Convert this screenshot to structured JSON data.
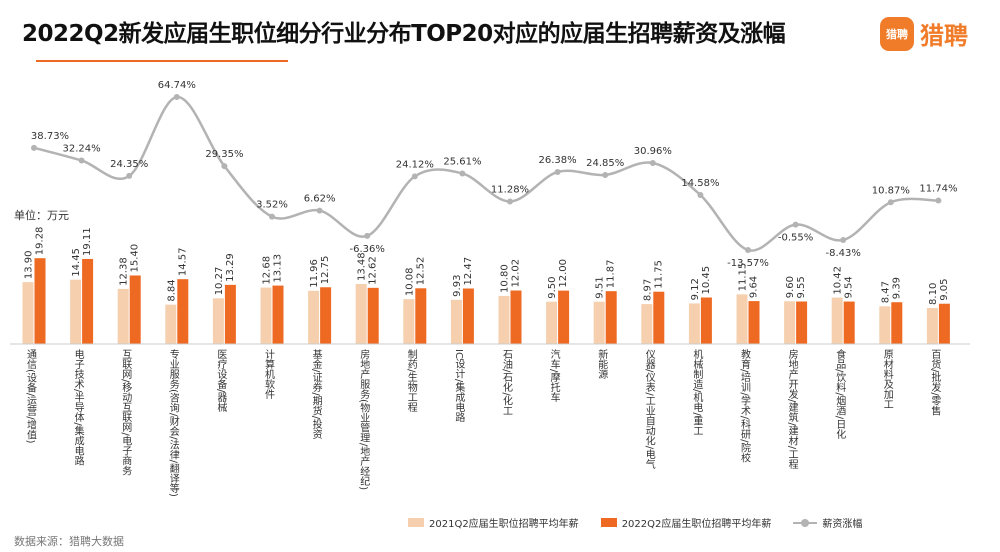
{
  "header": {
    "title": "2022Q2新发应届生职位细分行业分布TOP20对应的应届生招聘薪资及涨幅",
    "brand_logo_text": "猎聘",
    "brand_name": "猎聘"
  },
  "unit_label": "单位：万元",
  "source_label": "数据来源：猎聘大数据",
  "colors": {
    "bar_2021": "#F5CFAE",
    "bar_2022": "#EE6A22",
    "line": "#B3B3B3",
    "brand": "#F07C2A",
    "rule": "#EE6A22"
  },
  "legend": {
    "series_2021": "2021Q2应届生职位招聘平均年薪",
    "series_2022": "2022Q2应届生职位招聘平均年薪",
    "growth": "薪资涨幅"
  },
  "chart_data": {
    "type": "bar",
    "categories": [
      "通信(设备/运营/增值)",
      "电子技术/半导体/集成电路",
      "互联网/移动互联网/电子商务",
      "专业服务(咨询/财会/法律/翻译等)",
      "医疗设备/器械",
      "计算机软件",
      "基金/证券/期货/投资",
      "房地产服务(物业管理/地产经纪)",
      "制药/生物工程",
      "IC设计/集成电路",
      "石油/石化/化工",
      "汽车/摩托车",
      "新能源",
      "仪器/仪表/工业自动化/电气",
      "机械制造/机电/重工",
      "教育/培训/学术/科研/院校",
      "房地产开发/建筑/建材/工程",
      "食品/饮料/烟酒/日化",
      "原材料及加工",
      "百货/批发/零售"
    ],
    "series": [
      {
        "name": "2021Q2应届生职位招聘平均年薪",
        "values": [
          13.9,
          14.45,
          12.38,
          8.84,
          10.27,
          12.68,
          11.96,
          13.48,
          10.08,
          9.93,
          10.8,
          9.5,
          9.51,
          8.97,
          9.12,
          11.15,
          9.6,
          10.42,
          8.47,
          8.1
        ]
      },
      {
        "name": "2022Q2应届生职位招聘平均年薪",
        "values": [
          19.28,
          19.11,
          15.4,
          14.57,
          13.29,
          13.13,
          12.75,
          12.62,
          12.52,
          12.47,
          12.02,
          12.0,
          11.87,
          11.75,
          10.45,
          9.64,
          9.55,
          9.54,
          9.39,
          9.05
        ]
      },
      {
        "name": "薪资涨幅",
        "type": "line",
        "values": [
          38.73,
          32.24,
          24.35,
          64.74,
          29.35,
          3.52,
          6.62,
          -6.36,
          24.12,
          25.61,
          11.28,
          26.38,
          24.85,
          30.96,
          14.58,
          -13.57,
          -0.55,
          -8.43,
          10.87,
          11.74
        ]
      }
    ],
    "bar_labels_2021": [
      "13.90",
      "14.45",
      "12.38",
      "8.84",
      "10.27",
      "12.68",
      "11.96",
      "13.48",
      "10.08",
      "9.93",
      "10.80",
      "9.50",
      "9.51",
      "8.97",
      "9.12",
      "11.15",
      "9.60",
      "10.42",
      "8.47",
      "8.10"
    ],
    "bar_labels_2022": [
      "19.28",
      "19.11",
      "15.40",
      "14.57",
      "13.29",
      "13.13",
      "12.75",
      "12.62",
      "12.52",
      "12.47",
      "12.02",
      "12.00",
      "11.87",
      "11.75",
      "10.45",
      "9.64",
      "9.55",
      "9.54",
      "9.39",
      "9.05"
    ],
    "growth_labels": [
      "38.73%",
      "32.24%",
      "24.35%",
      "64.74%",
      "29.35%",
      "3.52%",
      "6.62%",
      "-6.36%",
      "24.12%",
      "25.61%",
      "11.28%",
      "26.38%",
      "24.85%",
      "30.96%",
      "14.58%",
      "-13.57%",
      "-0.55%",
      "-8.43%",
      "10.87%",
      "11.74%"
    ],
    "legend_position": "bottom-center",
    "grid": false
  }
}
